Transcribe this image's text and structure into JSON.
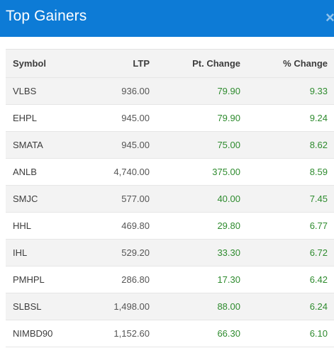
{
  "header": {
    "title": "Top Gainers",
    "close_icon": "×"
  },
  "colors": {
    "header_bg": "#0d7bd6",
    "positive": "#2e8b2e"
  },
  "table": {
    "columns": [
      "Symbol",
      "LTP",
      "Pt. Change",
      "% Change"
    ],
    "rows": [
      {
        "symbol": "VLBS",
        "ltp": "936.00",
        "pt_change": "79.90",
        "pct_change": "9.33"
      },
      {
        "symbol": "EHPL",
        "ltp": "945.00",
        "pt_change": "79.90",
        "pct_change": "9.24"
      },
      {
        "symbol": "SMATA",
        "ltp": "945.00",
        "pt_change": "75.00",
        "pct_change": "8.62"
      },
      {
        "symbol": "ANLB",
        "ltp": "4,740.00",
        "pt_change": "375.00",
        "pct_change": "8.59"
      },
      {
        "symbol": "SMJC",
        "ltp": "577.00",
        "pt_change": "40.00",
        "pct_change": "7.45"
      },
      {
        "symbol": "HHL",
        "ltp": "469.80",
        "pt_change": "29.80",
        "pct_change": "6.77"
      },
      {
        "symbol": "IHL",
        "ltp": "529.20",
        "pt_change": "33.30",
        "pct_change": "6.72"
      },
      {
        "symbol": "PMHPL",
        "ltp": "286.80",
        "pt_change": "17.30",
        "pct_change": "6.42"
      },
      {
        "symbol": "SLBSL",
        "ltp": "1,498.00",
        "pt_change": "88.00",
        "pct_change": "6.24"
      },
      {
        "symbol": "NIMBD90",
        "ltp": "1,152.60",
        "pt_change": "66.30",
        "pct_change": "6.10"
      }
    ]
  }
}
